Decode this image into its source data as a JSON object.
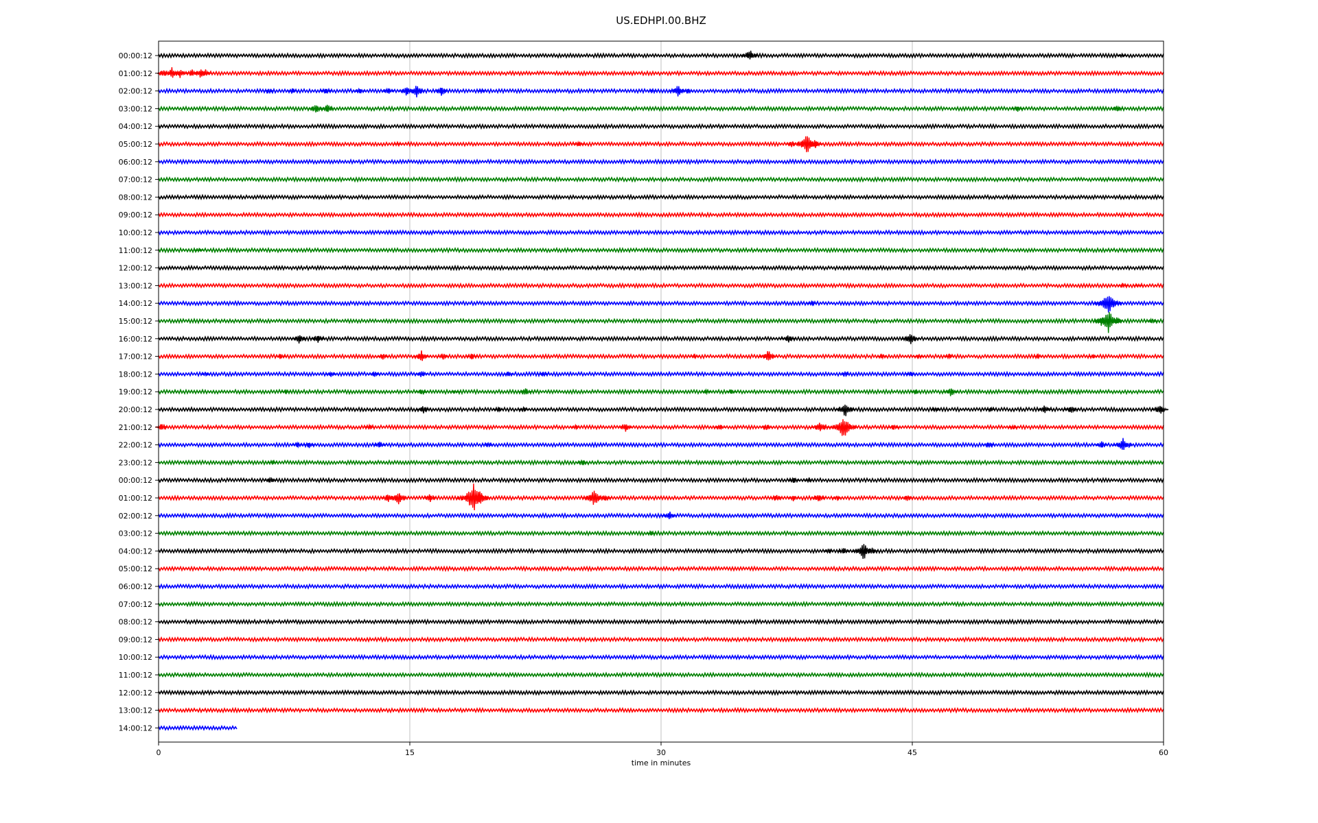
{
  "chart_data": {
    "type": "line",
    "title": "US.EDHPI.00.BHZ",
    "xlabel": "time in minutes",
    "ylabel": "",
    "xlim": [
      0,
      60
    ],
    "x_ticks": [
      "0",
      "15",
      "30",
      "45",
      "60"
    ],
    "x_tick_values": [
      0,
      15,
      30,
      45,
      60
    ],
    "grid": "vertical",
    "colors": [
      "#000000",
      "#ff0000",
      "#0000ff",
      "#008000"
    ],
    "rows": [
      {
        "label": "00:00:12",
        "color": "#000000",
        "end_minute": 60,
        "events": [
          [
            35.3,
            10
          ],
          [
            57.5,
            3
          ]
        ]
      },
      {
        "label": "01:00:12",
        "color": "#ff0000",
        "end_minute": 60,
        "events": [
          [
            0.3,
            6
          ],
          [
            0.8,
            9
          ],
          [
            1.3,
            8
          ],
          [
            2.0,
            6
          ],
          [
            2.5,
            8
          ],
          [
            2.8,
            6
          ]
        ]
      },
      {
        "label": "02:00:12",
        "color": "#0000ff",
        "end_minute": 60,
        "events": [
          [
            6.6,
            4
          ],
          [
            8.0,
            4
          ],
          [
            10.0,
            5
          ],
          [
            12.0,
            5
          ],
          [
            13.7,
            6
          ],
          [
            14.8,
            8
          ],
          [
            15.4,
            10
          ],
          [
            16.9,
            8
          ],
          [
            19.3,
            3
          ],
          [
            29.5,
            3
          ],
          [
            31.0,
            10
          ],
          [
            31.6,
            4
          ]
        ]
      },
      {
        "label": "03:00:12",
        "color": "#008000",
        "end_minute": 60,
        "events": [
          [
            9.4,
            8
          ],
          [
            10.1,
            7
          ],
          [
            51.3,
            5
          ],
          [
            57.2,
            6
          ]
        ]
      },
      {
        "label": "04:00:12",
        "color": "#000000",
        "end_minute": 60,
        "events": []
      },
      {
        "label": "05:00:12",
        "color": "#ff0000",
        "end_minute": 60,
        "events": [
          [
            14.3,
            2
          ],
          [
            25.1,
            5
          ],
          [
            37.8,
            5
          ],
          [
            38.7,
            16
          ],
          [
            39.2,
            7
          ]
        ]
      },
      {
        "label": "06:00:12",
        "color": "#0000ff",
        "end_minute": 60,
        "events": []
      },
      {
        "label": "07:00:12",
        "color": "#008000",
        "end_minute": 60,
        "events": []
      },
      {
        "label": "08:00:12",
        "color": "#000000",
        "end_minute": 60,
        "events": []
      },
      {
        "label": "09:00:12",
        "color": "#ff0000",
        "end_minute": 60,
        "events": []
      },
      {
        "label": "10:00:12",
        "color": "#0000ff",
        "end_minute": 60,
        "events": []
      },
      {
        "label": "11:00:12",
        "color": "#008000",
        "end_minute": 60,
        "events": [
          [
            2.4,
            3
          ]
        ]
      },
      {
        "label": "12:00:12",
        "color": "#000000",
        "end_minute": 60,
        "events": []
      },
      {
        "label": "13:00:12",
        "color": "#ff0000",
        "end_minute": 60,
        "events": [
          [
            57.6,
            4
          ],
          [
            58.5,
            3
          ]
        ]
      },
      {
        "label": "14:00:12",
        "color": "#0000ff",
        "end_minute": 60,
        "events": [
          [
            39.0,
            4
          ],
          [
            56.7,
            18
          ]
        ]
      },
      {
        "label": "15:00:12",
        "color": "#008000",
        "end_minute": 60,
        "events": [
          [
            56.3,
            8
          ],
          [
            56.7,
            18
          ],
          [
            57.2,
            6
          ],
          [
            59.3,
            5
          ]
        ]
      },
      {
        "label": "16:00:12",
        "color": "#000000",
        "end_minute": 60,
        "events": [
          [
            8.4,
            8
          ],
          [
            9.5,
            7
          ],
          [
            37.6,
            7
          ],
          [
            44.9,
            10
          ]
        ]
      },
      {
        "label": "17:00:12",
        "color": "#ff0000",
        "end_minute": 60,
        "events": [
          [
            7.3,
            4
          ],
          [
            13.4,
            5
          ],
          [
            15.7,
            9
          ],
          [
            17.0,
            5
          ],
          [
            18.7,
            5
          ],
          [
            32.0,
            3
          ],
          [
            36.4,
            10
          ],
          [
            43.2,
            4
          ],
          [
            45.4,
            3
          ],
          [
            47.2,
            4
          ],
          [
            52.5,
            3
          ],
          [
            55.8,
            3
          ]
        ]
      },
      {
        "label": "18:00:12",
        "color": "#0000ff",
        "end_minute": 60,
        "events": [
          [
            2.8,
            4
          ],
          [
            10.3,
            5
          ],
          [
            12.9,
            5
          ],
          [
            15.7,
            6
          ],
          [
            20.9,
            4
          ],
          [
            23.0,
            4
          ],
          [
            41.0,
            4
          ],
          [
            44.9,
            4
          ]
        ]
      },
      {
        "label": "19:00:12",
        "color": "#008000",
        "end_minute": 60,
        "events": [
          [
            7.6,
            3
          ],
          [
            15.7,
            5
          ],
          [
            17.7,
            3
          ],
          [
            21.9,
            6
          ],
          [
            32.7,
            4
          ],
          [
            34.2,
            4
          ],
          [
            45.2,
            4
          ],
          [
            47.3,
            8
          ]
        ]
      },
      {
        "label": "20:00:12",
        "color": "#000000",
        "end_minute": 60,
        "events": [
          [
            15.8,
            7
          ],
          [
            20.3,
            4
          ],
          [
            21.8,
            4
          ],
          [
            41.0,
            12
          ],
          [
            46.4,
            4
          ],
          [
            49.7,
            3
          ],
          [
            52.9,
            7
          ],
          [
            54.5,
            7
          ],
          [
            59.8,
            9
          ]
        ]
      },
      {
        "label": "21:00:12",
        "color": "#ff0000",
        "end_minute": 60,
        "events": [
          [
            0.2,
            6
          ],
          [
            12.6,
            4
          ],
          [
            24.9,
            4
          ],
          [
            27.9,
            8
          ],
          [
            33.5,
            5
          ],
          [
            36.3,
            5
          ],
          [
            39.5,
            10
          ],
          [
            40.9,
            18
          ],
          [
            43.9,
            5
          ],
          [
            51.0,
            4
          ]
        ]
      },
      {
        "label": "22:00:12",
        "color": "#0000ff",
        "end_minute": 60,
        "events": [
          [
            8.3,
            4
          ],
          [
            9.0,
            5
          ],
          [
            13.2,
            6
          ],
          [
            19.7,
            4
          ],
          [
            49.6,
            5
          ],
          [
            56.3,
            6
          ],
          [
            57.6,
            12
          ]
        ]
      },
      {
        "label": "23:00:12",
        "color": "#008000",
        "end_minute": 60,
        "events": [
          [
            6.8,
            3
          ],
          [
            25.3,
            5
          ]
        ]
      },
      {
        "label": "00:00:12",
        "color": "#000000",
        "end_minute": 60,
        "events": [
          [
            6.7,
            6
          ],
          [
            37.9,
            5
          ],
          [
            38.8,
            3
          ]
        ]
      },
      {
        "label": "01:00:12",
        "color": "#ff0000",
        "end_minute": 60,
        "events": [
          [
            13.7,
            7
          ],
          [
            14.3,
            12
          ],
          [
            16.2,
            7
          ],
          [
            18.8,
            22
          ],
          [
            19.2,
            12
          ],
          [
            26.0,
            14
          ],
          [
            26.7,
            5
          ],
          [
            36.9,
            6
          ],
          [
            37.9,
            5
          ],
          [
            39.4,
            8
          ],
          [
            40.5,
            4
          ],
          [
            44.7,
            5
          ]
        ]
      },
      {
        "label": "02:00:12",
        "color": "#0000ff",
        "end_minute": 60,
        "events": [
          [
            30.5,
            8
          ]
        ]
      },
      {
        "label": "03:00:12",
        "color": "#008000",
        "end_minute": 60,
        "events": [
          [
            29.4,
            3
          ]
        ]
      },
      {
        "label": "04:00:12",
        "color": "#000000",
        "end_minute": 60,
        "events": [
          [
            40.0,
            4
          ],
          [
            40.9,
            6
          ],
          [
            42.1,
            14
          ],
          [
            42.6,
            6
          ]
        ]
      },
      {
        "label": "05:00:12",
        "color": "#ff0000",
        "end_minute": 60,
        "events": []
      },
      {
        "label": "06:00:12",
        "color": "#0000ff",
        "end_minute": 60,
        "events": []
      },
      {
        "label": "07:00:12",
        "color": "#008000",
        "end_minute": 60,
        "events": []
      },
      {
        "label": "08:00:12",
        "color": "#000000",
        "end_minute": 60,
        "events": []
      },
      {
        "label": "09:00:12",
        "color": "#ff0000",
        "end_minute": 60,
        "events": []
      },
      {
        "label": "10:00:12",
        "color": "#0000ff",
        "end_minute": 60,
        "events": []
      },
      {
        "label": "11:00:12",
        "color": "#008000",
        "end_minute": 60,
        "events": []
      },
      {
        "label": "12:00:12",
        "color": "#000000",
        "end_minute": 60,
        "events": []
      },
      {
        "label": "13:00:12",
        "color": "#ff0000",
        "end_minute": 60,
        "events": []
      },
      {
        "label": "14:00:12",
        "color": "#0000ff",
        "end_minute": 4.7,
        "events": []
      }
    ]
  }
}
